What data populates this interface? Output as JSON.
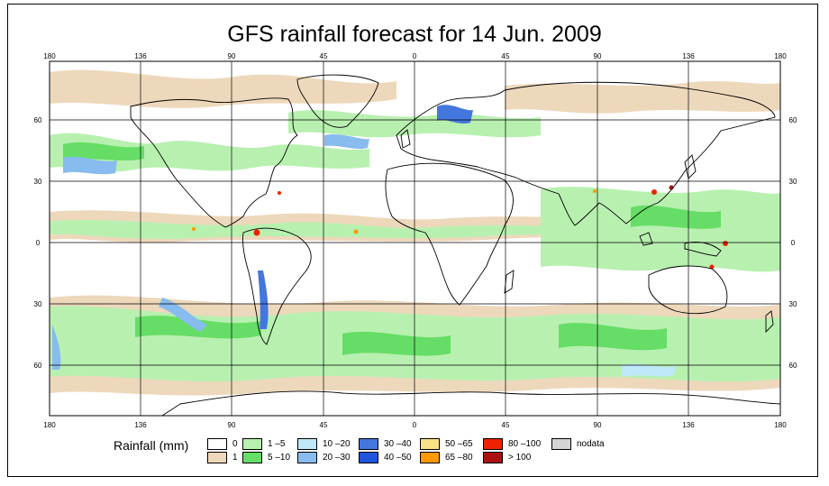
{
  "title": "GFS rainfall forecast for 14 Jun. 2009",
  "lon_ticks": [
    "180",
    "136",
    "90",
    "45",
    "0",
    "45",
    "90",
    "136",
    "180"
  ],
  "lat_ticks": [
    "60",
    "30",
    "0",
    "30",
    "60"
  ],
  "legend": {
    "title": "Rainfall (mm)",
    "items": [
      {
        "label": "0",
        "color": "#ffffff"
      },
      {
        "label": "1",
        "color": "#eed8bc"
      },
      {
        "label": "1 –5",
        "color": "#b8f0b0"
      },
      {
        "label": "5 –10",
        "color": "#66dd66"
      },
      {
        "label": "10 –20",
        "color": "#bfe8f8"
      },
      {
        "label": "20 –30",
        "color": "#88bbee"
      },
      {
        "label": "30 –40",
        "color": "#4477dd"
      },
      {
        "label": "40 –50",
        "color": "#1f55dd"
      },
      {
        "label": "50 –65",
        "color": "#f8e088"
      },
      {
        "label": "65 –80",
        "color": "#ff9900"
      },
      {
        "label": "80 –100",
        "color": "#ee2200"
      },
      {
        "label": "> 100",
        "color": "#aa1111"
      },
      {
        "label": "nodata",
        "color": "#d4d4d4"
      }
    ]
  }
}
